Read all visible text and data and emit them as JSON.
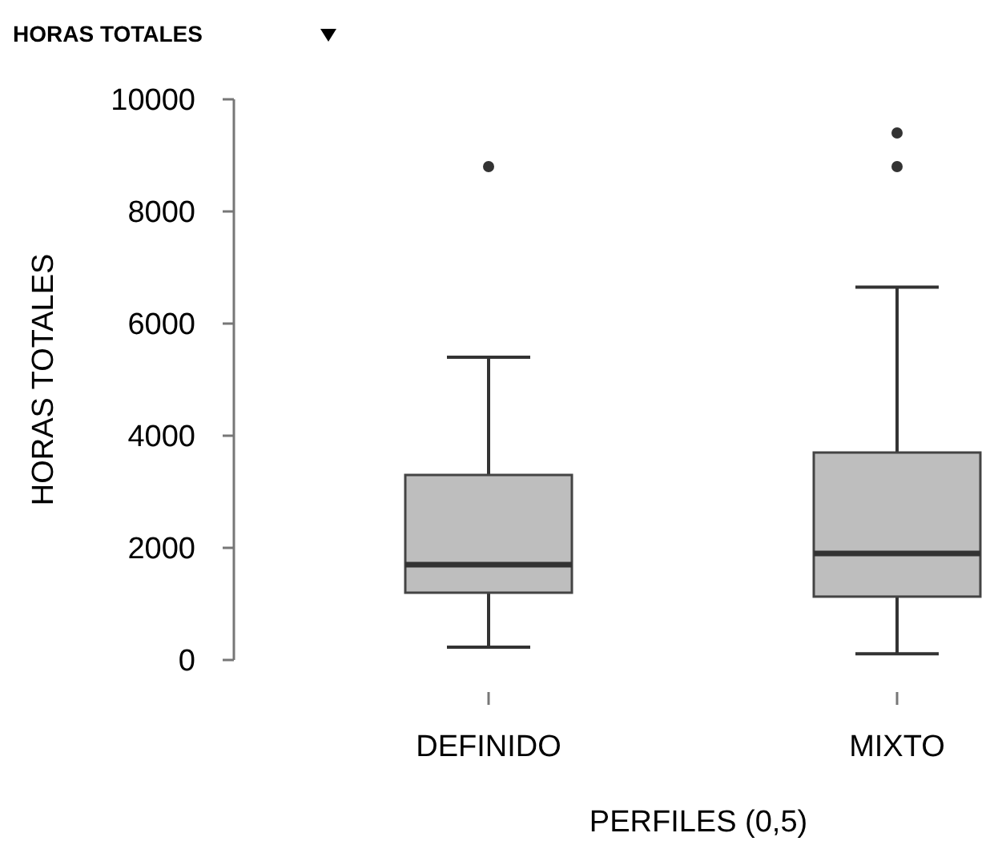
{
  "chart_data": {
    "type": "box",
    "title": "HORAS TOTALES",
    "xlabel": "PERFILES (0,5)",
    "ylabel": "HORAS TOTALES",
    "categories": [
      "DEFINIDO",
      "MIXTO"
    ],
    "color": "#bebebe",
    "ylim": [
      0,
      10000
    ],
    "yticks": [
      0,
      2000,
      4000,
      6000,
      8000,
      10000
    ],
    "grid": false,
    "boxes": [
      {
        "low": 230,
        "q1": 1200,
        "median": 1700,
        "q3": 3300,
        "high": 5400,
        "outliers": [
          8800
        ]
      },
      {
        "low": 110,
        "q1": 1130,
        "median": 1900,
        "q3": 3700,
        "high": 6650,
        "outliers": [
          8800,
          9400
        ]
      }
    ]
  }
}
